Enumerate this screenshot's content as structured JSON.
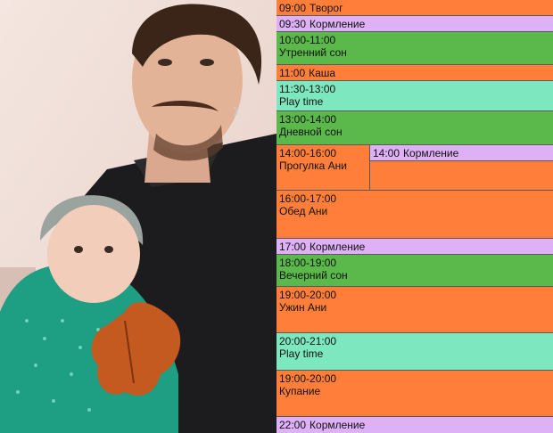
{
  "colors": {
    "orange": "#ff7f3a",
    "lavender": "#deb0f5",
    "green": "#5bb84a",
    "mint": "#7de8bf"
  },
  "photo": {
    "description_icons": [
      "father-figure",
      "baby-figure",
      "autumn-leaf"
    ]
  },
  "schedule": [
    {
      "time": "09:00",
      "label": "Творог",
      "color": "orange"
    },
    {
      "time": "09:30",
      "label": "Кормление",
      "color": "lavender"
    },
    {
      "time": "10:00-11:00",
      "label": "Утренний сон",
      "color": "green"
    },
    {
      "time": "11:00",
      "label": "Каша",
      "color": "orange"
    },
    {
      "time": "11:30-13:00",
      "label": "Play time",
      "color": "mint"
    },
    {
      "time": "13:00-14:00",
      "label": "Дневной сон",
      "color": "green"
    },
    {
      "time": "14:00-16:00",
      "label": "Прогулка Ани",
      "color": "orange"
    },
    {
      "time": "14:00",
      "label": "Кормление",
      "color": "lavender"
    },
    {
      "time": "16:00-17:00",
      "label": "Обед Ани",
      "color": "orange"
    },
    {
      "time": "17:00",
      "label": "Кормление",
      "color": "lavender"
    },
    {
      "time": "18:00-19:00",
      "label": "Вечерний сон",
      "color": "green"
    },
    {
      "time": "19:00-20:00",
      "label": "Ужин Ани",
      "color": "orange"
    },
    {
      "time": "20:00-21:00",
      "label": "Play time",
      "color": "mint"
    },
    {
      "time": "19:00-20:00",
      "label": "Купание",
      "color": "orange"
    },
    {
      "time": "22:00",
      "label": "Кормление",
      "color": "lavender"
    }
  ]
}
